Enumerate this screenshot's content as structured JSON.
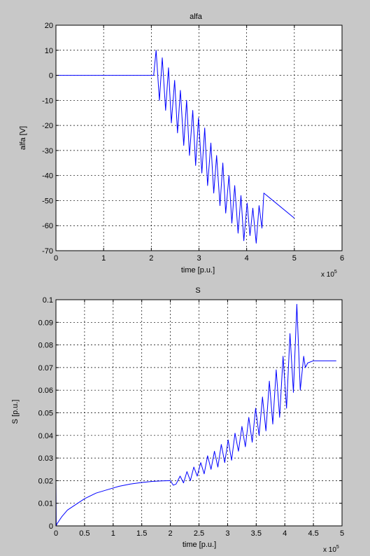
{
  "window": {
    "background": "#c8c8c8"
  },
  "colors": {
    "line": "#0000ff",
    "axes_bg": "#ffffff",
    "grid": "#000000"
  },
  "chart_data": [
    {
      "type": "line",
      "title": "alfa",
      "xlabel": "time [p.u.]",
      "ylabel": "alfa [V]",
      "xlim": [
        0,
        6
      ],
      "ylim": [
        -70,
        20
      ],
      "xticks": [
        0,
        1,
        2,
        3,
        4,
        5,
        6
      ],
      "xtick_labels": [
        "0",
        "1",
        "2",
        "3",
        "4",
        "5",
        "6"
      ],
      "yticks": [
        -70,
        -60,
        -50,
        -40,
        -30,
        -20,
        -10,
        0,
        10,
        20
      ],
      "ytick_labels": [
        "-70",
        "-60",
        "-50",
        "-40",
        "-30",
        "-20",
        "-10",
        "0",
        "10",
        "20"
      ],
      "x_multiplier_base": "x 10",
      "x_multiplier_exp": "5",
      "grid": true,
      "series": [
        {
          "color": "#0000ff",
          "x": [
            0,
            2.0,
            2.05,
            2.1,
            2.17,
            2.23,
            2.3,
            2.36,
            2.42,
            2.49,
            2.55,
            2.61,
            2.68,
            2.74,
            2.8,
            2.87,
            2.93,
            2.99,
            3.06,
            3.12,
            3.18,
            3.25,
            3.31,
            3.37,
            3.44,
            3.5,
            3.56,
            3.63,
            3.69,
            3.75,
            3.82,
            3.88,
            3.94,
            4.01,
            4.07,
            4.13,
            4.2,
            4.26,
            4.32,
            4.36,
            5.0
          ],
          "y": [
            0,
            0,
            0,
            10,
            -10,
            7,
            -14,
            3,
            -19,
            -2,
            -23,
            -6,
            -28,
            -10,
            -32,
            -14,
            -36,
            -17,
            -39,
            -21,
            -44,
            -27,
            -47,
            -32,
            -52,
            -35,
            -55,
            -40,
            -59,
            -44,
            -63,
            -48,
            -66,
            -51,
            -64,
            -53,
            -67,
            -52,
            -61,
            -47,
            -57
          ]
        }
      ]
    },
    {
      "type": "line",
      "title": "S",
      "xlabel": "time [p.u.]",
      "ylabel": "S [p.u.]",
      "xlim": [
        0,
        5
      ],
      "ylim": [
        0,
        0.1
      ],
      "xticks": [
        0,
        0.5,
        1,
        1.5,
        2,
        2.5,
        3,
        3.5,
        4,
        4.5,
        5
      ],
      "xtick_labels": [
        "0",
        "0.5",
        "1",
        "1.5",
        "2",
        "2.5",
        "3",
        "3.5",
        "4",
        "4.5",
        "5"
      ],
      "yticks": [
        0,
        0.01,
        0.02,
        0.03,
        0.04,
        0.05,
        0.06,
        0.07,
        0.08,
        0.09,
        0.1
      ],
      "ytick_labels": [
        "0",
        "0.01",
        "0.02",
        "0.03",
        "0.04",
        "0.05",
        "0.06",
        "0.07",
        "0.08",
        "0.09",
        "0.1"
      ],
      "x_multiplier_base": "x 10",
      "x_multiplier_exp": "5",
      "grid": true,
      "series": [
        {
          "color": "#0000ff",
          "x": [
            0,
            0.005,
            0.02,
            0.1,
            0.2,
            0.35,
            0.5,
            0.7,
            0.9,
            1.1,
            1.3,
            1.5,
            1.7,
            1.85,
            2.0,
            2.05,
            2.1,
            2.17,
            2.23,
            2.29,
            2.35,
            2.41,
            2.47,
            2.53,
            2.59,
            2.65,
            2.71,
            2.77,
            2.83,
            2.89,
            2.95,
            3.01,
            3.07,
            3.13,
            3.19,
            3.25,
            3.31,
            3.37,
            3.43,
            3.49,
            3.55,
            3.61,
            3.67,
            3.73,
            3.79,
            3.85,
            3.91,
            3.97,
            4.03,
            4.09,
            4.15,
            4.21,
            4.27,
            4.33,
            4.36,
            4.4,
            4.5,
            4.9
          ],
          "y": [
            0.02,
            0.0,
            0.001,
            0.004,
            0.007,
            0.0095,
            0.012,
            0.0145,
            0.016,
            0.0175,
            0.0185,
            0.0192,
            0.0197,
            0.0199,
            0.02,
            0.018,
            0.0185,
            0.022,
            0.019,
            0.024,
            0.02,
            0.026,
            0.022,
            0.028,
            0.023,
            0.031,
            0.025,
            0.033,
            0.026,
            0.036,
            0.028,
            0.038,
            0.029,
            0.041,
            0.033,
            0.044,
            0.035,
            0.048,
            0.037,
            0.052,
            0.04,
            0.057,
            0.042,
            0.064,
            0.045,
            0.069,
            0.048,
            0.075,
            0.052,
            0.085,
            0.059,
            0.098,
            0.06,
            0.075,
            0.07,
            0.072,
            0.073,
            0.073
          ]
        }
      ]
    }
  ]
}
